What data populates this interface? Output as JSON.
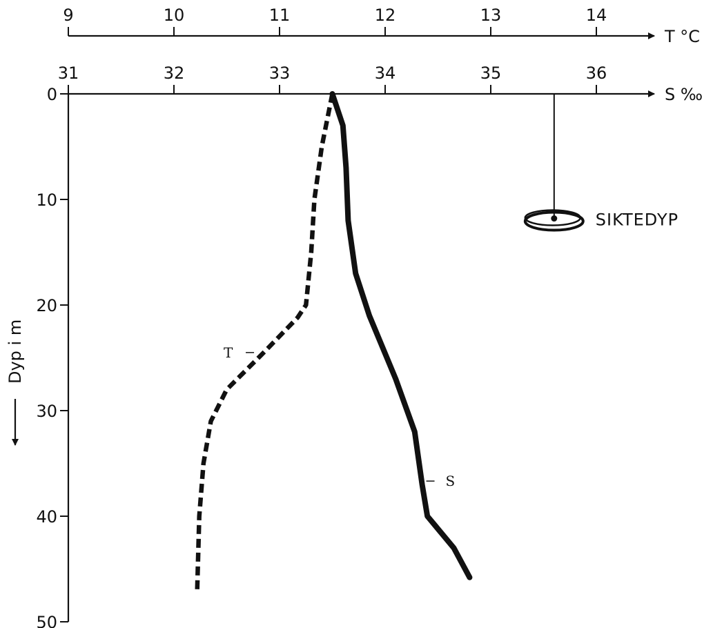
{
  "chart_data": {
    "type": "line",
    "title": "",
    "y_axis": {
      "label": "Dyp i m",
      "range": [
        0,
        50
      ],
      "ticks": [
        0,
        10,
        20,
        30,
        40,
        50
      ],
      "inverted": true
    },
    "x_axes": [
      {
        "id": "temperature",
        "label": "T °C",
        "range": [
          9,
          14.5
        ],
        "ticks": [
          9,
          10,
          11,
          12,
          13,
          14
        ]
      },
      {
        "id": "salinity",
        "label": "S ‰",
        "range": [
          31,
          36.5
        ],
        "ticks": [
          31,
          32,
          33,
          34,
          35,
          36
        ]
      }
    ],
    "series": [
      {
        "name": "T",
        "axis": "temperature",
        "style": "dashed",
        "points": [
          {
            "x": 11.5,
            "y": 0
          },
          {
            "x": 11.4,
            "y": 5
          },
          {
            "x": 11.33,
            "y": 10
          },
          {
            "x": 11.3,
            "y": 15
          },
          {
            "x": 11.25,
            "y": 20
          },
          {
            "x": 11.17,
            "y": 21.2
          },
          {
            "x": 10.85,
            "y": 24.5
          },
          {
            "x": 10.5,
            "y": 28
          },
          {
            "x": 10.35,
            "y": 31
          },
          {
            "x": 10.28,
            "y": 35
          },
          {
            "x": 10.24,
            "y": 40
          },
          {
            "x": 10.22,
            "y": 47
          }
        ]
      },
      {
        "name": "S",
        "axis": "salinity",
        "style": "solid",
        "points": [
          {
            "x": 33.5,
            "y": 0
          },
          {
            "x": 33.6,
            "y": 3
          },
          {
            "x": 33.63,
            "y": 7
          },
          {
            "x": 33.65,
            "y": 12
          },
          {
            "x": 33.72,
            "y": 17
          },
          {
            "x": 33.85,
            "y": 21
          },
          {
            "x": 34.1,
            "y": 27
          },
          {
            "x": 34.28,
            "y": 32
          },
          {
            "x": 34.35,
            "y": 37
          },
          {
            "x": 34.4,
            "y": 40
          },
          {
            "x": 34.65,
            "y": 43
          },
          {
            "x": 34.8,
            "y": 45.8
          }
        ]
      }
    ],
    "annotations": [
      {
        "label": "SIKTEDYP",
        "x": 35.6,
        "y": 11.8,
        "axis": "salinity"
      }
    ]
  }
}
